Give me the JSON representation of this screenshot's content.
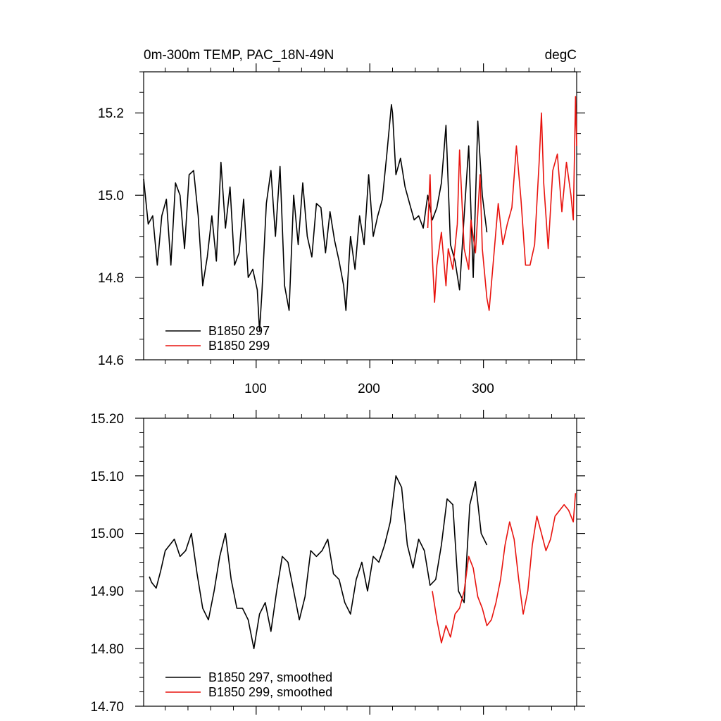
{
  "chart_data": [
    {
      "type": "line",
      "title": "0m-300m TEMP, PAC_18N-49N",
      "units": "degC",
      "xlim": [
        1,
        382
      ],
      "ylim": [
        14.6,
        15.3
      ],
      "x_ticks": [
        100,
        200,
        300
      ],
      "x_tick_labels": [
        "100",
        "200",
        "300"
      ],
      "y_ticks": [
        14.6,
        14.8,
        15.0,
        15.2
      ],
      "y_tick_labels": [
        "14.6",
        "14.8",
        "15.0",
        "15.2"
      ],
      "legend_position": "bottom-left",
      "series": [
        {
          "name": "B1850 297",
          "color": "#000000",
          "x": [
            1,
            5,
            9,
            13,
            17,
            21,
            25,
            29,
            33,
            37,
            41,
            45,
            49,
            53,
            57,
            61,
            65,
            69,
            73,
            77,
            81,
            85,
            89,
            93,
            97,
            101,
            103,
            105,
            109,
            113,
            117,
            121,
            125,
            129,
            133,
            137,
            141,
            145,
            149,
            153,
            157,
            161,
            165,
            169,
            173,
            177,
            179,
            183,
            187,
            191,
            195,
            199,
            203,
            207,
            211,
            215,
            219,
            220,
            223,
            227,
            231,
            235,
            239,
            243,
            247,
            251,
            255,
            259,
            263,
            267,
            271,
            275,
            279,
            283,
            287,
            291,
            295,
            299,
            303
          ],
          "values": [
            15.04,
            14.93,
            14.95,
            14.83,
            14.95,
            14.99,
            14.83,
            15.03,
            15.0,
            14.87,
            15.05,
            15.06,
            14.95,
            14.78,
            14.85,
            14.95,
            14.84,
            15.08,
            14.92,
            15.02,
            14.83,
            14.86,
            14.99,
            14.8,
            14.82,
            14.77,
            14.67,
            14.76,
            14.98,
            15.06,
            14.9,
            15.07,
            14.78,
            14.72,
            15.0,
            14.88,
            15.03,
            14.9,
            14.85,
            14.98,
            14.97,
            14.86,
            14.96,
            14.89,
            14.84,
            14.78,
            14.72,
            14.9,
            14.82,
            14.95,
            14.88,
            15.05,
            14.9,
            14.95,
            14.99,
            15.1,
            15.22,
            15.2,
            15.05,
            15.09,
            15.02,
            14.98,
            14.94,
            14.95,
            14.92,
            15.0,
            14.94,
            14.97,
            15.03,
            15.17,
            14.88,
            14.84,
            14.77,
            14.95,
            15.12,
            14.8,
            15.18,
            15.0,
            14.91
          ]
        },
        {
          "name": "B1850 299",
          "color": "#e8130e",
          "x": [
            251,
            253,
            255,
            257,
            259,
            263,
            267,
            269,
            273,
            277,
            279,
            283,
            287,
            289,
            293,
            297,
            299,
            303,
            305,
            309,
            313,
            317,
            321,
            325,
            329,
            333,
            337,
            341,
            345,
            349,
            351,
            353,
            357,
            361,
            365,
            369,
            373,
            377,
            379,
            381,
            382
          ],
          "values": [
            14.92,
            15.05,
            14.85,
            14.74,
            14.83,
            14.91,
            14.78,
            14.87,
            14.82,
            14.93,
            15.11,
            14.87,
            14.82,
            14.94,
            14.86,
            15.05,
            14.87,
            14.75,
            14.72,
            14.85,
            14.98,
            14.88,
            14.93,
            14.97,
            15.12,
            14.99,
            14.83,
            14.83,
            14.88,
            15.08,
            15.2,
            15.03,
            14.87,
            15.06,
            15.1,
            14.96,
            15.08,
            15.0,
            14.94,
            15.24,
            15.12
          ]
        }
      ]
    },
    {
      "type": "line",
      "title": "",
      "xlim": [
        1,
        382
      ],
      "ylim": [
        14.7,
        15.2
      ],
      "x_ticks": [
        100,
        200,
        300
      ],
      "y_ticks": [
        14.7,
        14.8,
        14.9,
        15.0,
        15.1,
        15.2
      ],
      "y_tick_labels": [
        "14.70",
        "14.80",
        "14.90",
        "15.00",
        "15.10",
        "15.20"
      ],
      "legend_position": "bottom-left",
      "series": [
        {
          "name": "B1850 297, smoothed",
          "color": "#000000",
          "x": [
            6,
            8,
            12,
            16,
            20,
            24,
            28,
            33,
            38,
            43,
            48,
            53,
            58,
            63,
            68,
            73,
            78,
            83,
            88,
            93,
            98,
            103,
            108,
            113,
            118,
            123,
            128,
            133,
            138,
            143,
            148,
            153,
            158,
            163,
            168,
            173,
            178,
            183,
            188,
            193,
            198,
            203,
            208,
            213,
            218,
            223,
            228,
            233,
            238,
            243,
            248,
            253,
            258,
            263,
            268,
            273,
            278,
            283,
            288,
            293,
            298,
            303
          ],
          "values": [
            14.925,
            14.915,
            14.905,
            14.935,
            14.97,
            14.98,
            14.99,
            14.96,
            14.97,
            15.0,
            14.93,
            14.87,
            14.85,
            14.9,
            14.96,
            15.0,
            14.92,
            14.87,
            14.87,
            14.85,
            14.8,
            14.86,
            14.88,
            14.83,
            14.9,
            14.96,
            14.95,
            14.9,
            14.85,
            14.89,
            14.97,
            14.96,
            14.97,
            14.99,
            14.93,
            14.92,
            14.88,
            14.86,
            14.92,
            14.95,
            14.9,
            14.96,
            14.95,
            14.98,
            15.02,
            15.1,
            15.08,
            14.98,
            14.94,
            14.99,
            14.97,
            14.91,
            14.92,
            14.98,
            15.06,
            15.05,
            14.9,
            14.88,
            15.05,
            15.09,
            15.0,
            14.98
          ]
        },
        {
          "name": "B1850 299, smoothed",
          "color": "#e8130e",
          "x": [
            255,
            259,
            263,
            267,
            271,
            275,
            279,
            283,
            287,
            291,
            295,
            299,
            303,
            307,
            311,
            315,
            319,
            323,
            327,
            331,
            335,
            339,
            343,
            347,
            351,
            355,
            359,
            363,
            367,
            371,
            375,
            379,
            381
          ],
          "values": [
            14.9,
            14.85,
            14.81,
            14.84,
            14.82,
            14.86,
            14.87,
            14.9,
            14.96,
            14.94,
            14.89,
            14.87,
            14.84,
            14.85,
            14.88,
            14.92,
            14.98,
            15.02,
            14.99,
            14.92,
            14.86,
            14.9,
            14.98,
            15.03,
            15.0,
            14.97,
            14.99,
            15.03,
            15.04,
            15.05,
            15.04,
            15.02,
            15.07
          ]
        }
      ]
    }
  ]
}
